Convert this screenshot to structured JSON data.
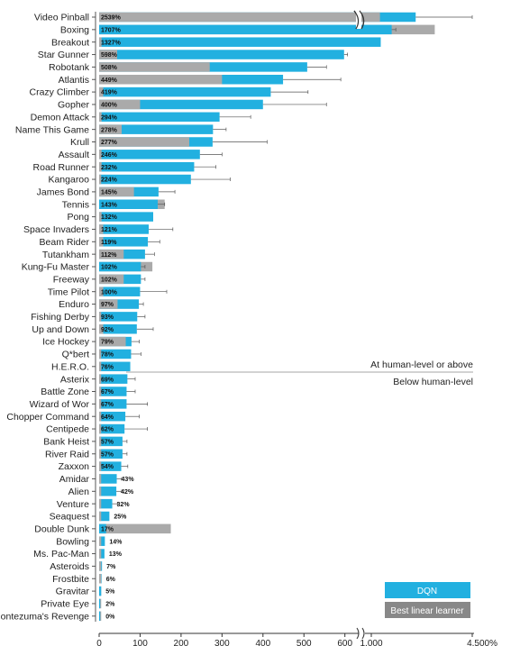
{
  "chart_data": {
    "type": "bar",
    "orientation": "horizontal",
    "title": "",
    "xlabel": "",
    "ylabel": "",
    "xlim": [
      0,
      4500
    ],
    "axis_break": {
      "from": 600,
      "to": 1000
    },
    "x_ticks": [
      "0",
      "100",
      "200",
      "300",
      "400",
      "500",
      "600",
      "1,000",
      "4,500%"
    ],
    "x_tick_values": [
      0,
      100,
      200,
      300,
      400,
      500,
      600,
      1000,
      4500
    ],
    "categories": [
      "Video Pinball",
      "Boxing",
      "Breakout",
      "Star Gunner",
      "Robotank",
      "Atlantis",
      "Crazy Climber",
      "Gopher",
      "Demon Attack",
      "Name This Game",
      "Krull",
      "Assault",
      "Road Runner",
      "Kangaroo",
      "James Bond",
      "Tennis",
      "Pong",
      "Space Invaders",
      "Beam Rider",
      "Tutankham",
      "Kung-Fu Master",
      "Freeway",
      "Time Pilot",
      "Enduro",
      "Fishing Derby",
      "Up and Down",
      "Ice Hockey",
      "Q*bert",
      "H.E.R.O.",
      "Asterix",
      "Battle Zone",
      "Wizard of Wor",
      "Chopper Command",
      "Centipede",
      "Bank Heist",
      "River Raid",
      "Zaxxon",
      "Amidar",
      "Alien",
      "Venture",
      "Seaquest",
      "Double Dunk",
      "Bowling",
      "Ms. Pac-Man",
      "Asteroids",
      "Frostbite",
      "Gravitar",
      "Private Eye",
      "Montezuma's Revenge"
    ],
    "value_labels": [
      "2539%",
      "1707%",
      "1327%",
      "598%",
      "508%",
      "449%",
      "419%",
      "400%",
      "294%",
      "278%",
      "277%",
      "246%",
      "232%",
      "224%",
      "145%",
      "143%",
      "132%",
      "121%",
      "119%",
      "112%",
      "102%",
      "102%",
      "100%",
      "97%",
      "93%",
      "92%",
      "79%",
      "78%",
      "76%",
      "69%",
      "67%",
      "67%",
      "64%",
      "62%",
      "57%",
      "57%",
      "54%",
      "43%",
      "42%",
      "32%",
      "25%",
      "17%",
      "14%",
      "13%",
      "7%",
      "6%",
      "5%",
      "2%",
      "0%"
    ],
    "series": [
      {
        "name": "DQN",
        "color": "#22b0e0",
        "values": [
          2539,
          1707,
          1327,
          598,
          508,
          449,
          419,
          400,
          294,
          278,
          277,
          246,
          232,
          224,
          145,
          143,
          132,
          121,
          119,
          112,
          102,
          102,
          100,
          97,
          93,
          92,
          79,
          78,
          76,
          69,
          67,
          67,
          64,
          62,
          57,
          57,
          54,
          43,
          42,
          32,
          25,
          17,
          14,
          13,
          7,
          6,
          5,
          2,
          0
        ],
        "error": [
          4500,
          1850,
          1380,
          640,
          555,
          590,
          510,
          555,
          370,
          310,
          410,
          300,
          285,
          320,
          185,
          160,
          135,
          180,
          148,
          135,
          112,
          112,
          165,
          108,
          112,
          132,
          98,
          102,
          78,
          88,
          88,
          118,
          98,
          118,
          68,
          68,
          70,
          55,
          55,
          45,
          28,
          20,
          18,
          17,
          10,
          9,
          9,
          4,
          2
        ]
      },
      {
        "name": "Best linear learner",
        "color": "#aaaaaa",
        "values": [
          1300,
          3200,
          6,
          44,
          270,
          300,
          10,
          100,
          6,
          55,
          220,
          6,
          6,
          5,
          85,
          160,
          6,
          10,
          10,
          60,
          130,
          60,
          10,
          45,
          5,
          10,
          65,
          5,
          5,
          5,
          5,
          5,
          5,
          5,
          5,
          5,
          5,
          5,
          5,
          5,
          5,
          175,
          5,
          5,
          5,
          5,
          5,
          5,
          5
        ]
      }
    ],
    "threshold_after": "H.E.R.O.",
    "annotations": [
      "At human-level or above",
      "Below human-level"
    ],
    "legend_position": "bottom-right"
  }
}
